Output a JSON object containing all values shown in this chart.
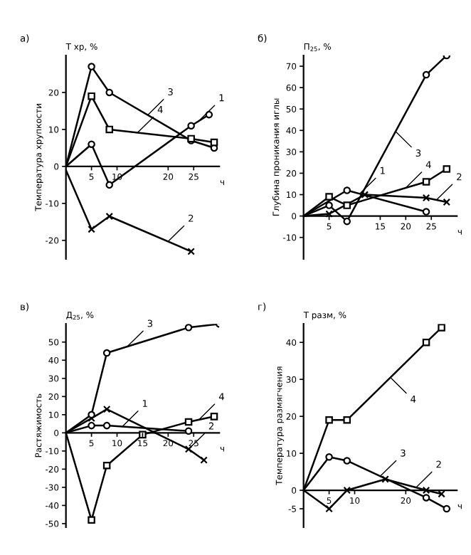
{
  "chart_data": [
    {
      "type": "line",
      "title": "а)",
      "subtitle": "Т хр, %",
      "ylabel": "Температура хрупкости",
      "xlabel": "ч",
      "xlim": [
        0,
        30
      ],
      "xticks": [
        5,
        10,
        20,
        25
      ],
      "ylim": [
        -25,
        30
      ],
      "yticks": [
        -20,
        -10,
        0,
        10,
        20
      ],
      "grid": false,
      "annotations": [
        {
          "text": "1",
          "x": 26,
          "y": 12.3
        },
        {
          "text": "2",
          "x": 20,
          "y": -20.3
        },
        {
          "text": "3",
          "x": 16,
          "y": 13.9
        },
        {
          "text": "4",
          "x": 14,
          "y": 9.1
        }
      ],
      "series": [
        {
          "color": "#000000",
          "marker": "circle",
          "x": [
            0,
            5,
            8.5,
            24.5,
            28
          ],
          "values": [
            0,
            6,
            -5,
            11,
            14
          ]
        },
        {
          "color": "#000000",
          "marker": "cross",
          "x": [
            0,
            5,
            8.5,
            24.5
          ],
          "values": [
            -1,
            -17,
            -13.5,
            -23
          ]
        },
        {
          "color": "#000000",
          "marker": "circle",
          "x": [
            0,
            5,
            8.5,
            24.5,
            29
          ],
          "values": [
            0,
            27,
            20,
            7,
            5
          ]
        },
        {
          "color": "#000000",
          "marker": "square",
          "x": [
            0,
            5,
            8.5,
            24.5,
            29
          ],
          "values": [
            0,
            19,
            10,
            7.5,
            6.5
          ]
        }
      ]
    },
    {
      "type": "line",
      "title": "б)",
      "subtitle": "П$_{25}$, %",
      "ylabel": "Глубина проникания иглы",
      "xlabel": "ч",
      "xlim": [
        0,
        30
      ],
      "xticks": [
        5,
        15,
        20,
        25
      ],
      "ylim": [
        -20,
        75
      ],
      "yticks": [
        -10,
        0,
        10,
        20,
        30,
        40,
        50,
        60,
        70
      ],
      "grid": false,
      "annotations": [
        {
          "text": "1",
          "x": 11,
          "y": 10.4
        },
        {
          "text": "2",
          "x": 26,
          "y": 7.5
        },
        {
          "text": "3",
          "x": 18,
          "y": 39.5
        },
        {
          "text": "4",
          "x": 20,
          "y": 13.2
        }
      ],
      "series": [
        {
          "color": "#000000",
          "marker": "circle",
          "x": [
            0,
            8.5,
            24
          ],
          "values": [
            0,
            12,
            2
          ]
        },
        {
          "color": "#000000",
          "marker": "cross",
          "x": [
            0,
            5,
            12,
            24,
            28
          ],
          "values": [
            0,
            1,
            10,
            8.5,
            6.5
          ]
        },
        {
          "color": "#000000",
          "marker": "circle",
          "x": [
            0,
            5,
            8.5,
            24,
            28
          ],
          "values": [
            0,
            5,
            -2.5,
            66,
            75
          ]
        },
        {
          "color": "#000000",
          "marker": "square",
          "x": [
            0,
            5,
            8.5,
            24,
            28
          ],
          "values": [
            0,
            9,
            5,
            16,
            22
          ]
        }
      ]
    },
    {
      "type": "line",
      "title": "в)",
      "subtitle": "Д$_{25}$, %",
      "ylabel": "Растяжимость",
      "xlabel": "ч",
      "xlim": [
        0,
        30
      ],
      "xticks": [
        5,
        10,
        15,
        20,
        25
      ],
      "ylim": [
        -52,
        60
      ],
      "yticks": [
        -50,
        -40,
        -30,
        -20,
        -10,
        0,
        10,
        20,
        30,
        40,
        50
      ],
      "grid": false,
      "annotations": [
        {
          "text": "1",
          "x": 11,
          "y": 3.4
        },
        {
          "text": "2",
          "x": 24,
          "y": -9
        },
        {
          "text": "3",
          "x": 12,
          "y": 47.5
        },
        {
          "text": "4",
          "x": 26,
          "y": 7.2
        }
      ],
      "series": [
        {
          "color": "#000000",
          "marker": "circle",
          "x": [
            0,
            5,
            8,
            24
          ],
          "values": [
            0,
            4,
            4,
            1
          ]
        },
        {
          "color": "#000000",
          "marker": "cross",
          "x": [
            0,
            5,
            8,
            24,
            27
          ],
          "values": [
            0,
            8,
            13,
            -9,
            -15
          ]
        },
        {
          "color": "#000000",
          "marker": "circle",
          "x": [
            0,
            5,
            8,
            24,
            30
          ],
          "values": [
            0,
            10,
            44,
            58,
            60
          ]
        },
        {
          "color": "#000000",
          "marker": "square",
          "x": [
            0,
            5,
            8,
            15,
            24,
            29
          ],
          "values": [
            0,
            -48,
            -18,
            -1,
            6,
            9
          ]
        }
      ]
    },
    {
      "type": "line",
      "title": "г)",
      "subtitle": "Т разм, %",
      "ylabel": "Температура размягчения",
      "xlabel": "ч",
      "xlim": [
        0,
        30
      ],
      "xticks": [
        5,
        10,
        20
      ],
      "ylim": [
        -10,
        45
      ],
      "yticks": [
        -5,
        0,
        10,
        20,
        30,
        40
      ],
      "grid": false,
      "annotations": [
        {
          "text": "2",
          "x": 22,
          "y": 0.75
        },
        {
          "text": "3",
          "x": 15,
          "y": 3.8
        },
        {
          "text": "4",
          "x": 17,
          "y": 30.5
        }
      ],
      "series": [
        {
          "color": "#000000",
          "marker": "cross",
          "x": [
            0,
            5,
            8.5,
            16,
            24,
            27
          ],
          "values": [
            0,
            -5,
            0,
            3,
            0,
            -1
          ]
        },
        {
          "color": "#000000",
          "marker": "circle",
          "x": [
            0,
            5,
            8.5,
            24,
            28
          ],
          "values": [
            0,
            9,
            8,
            -2,
            -5
          ]
        },
        {
          "color": "#000000",
          "marker": "square",
          "x": [
            0,
            5,
            8.5,
            24,
            27
          ],
          "values": [
            0,
            19,
            19,
            40,
            44
          ]
        }
      ]
    }
  ]
}
